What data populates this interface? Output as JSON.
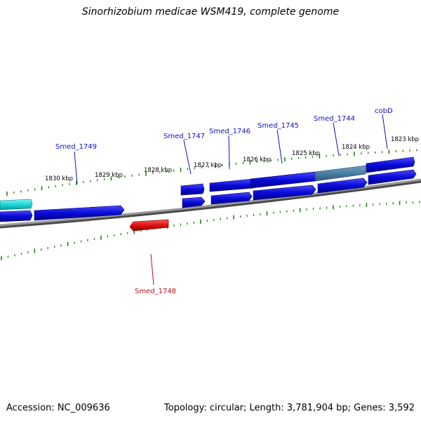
{
  "title": "Sinorhizobium medicae WSM419, complete genome",
  "footer": {
    "accession": "Accession: NC_009636",
    "topology": "Topology: circular; Length: 3,781,904 bp; Genes: 3,592"
  },
  "colors": {
    "backbone": "#7f7f7f",
    "gene_forward": "#0a0ad8",
    "gene_highlight": "#4a7fa6",
    "gene_cyan": "#1fd6d6",
    "gene_reverse": "#e01010",
    "tick": "#2e7d1e",
    "label_blue": "#1010c0",
    "label_red": "#c01010"
  },
  "scale": {
    "labels": [
      "1823 kbp",
      "1824 kbp",
      "1825 kbp",
      "1826 kbp",
      "1827 kbp",
      "1828 kbp",
      "1829 kbp",
      "1830 kbp"
    ]
  },
  "genes": [
    {
      "label": "cobD",
      "strand": "forward"
    },
    {
      "label": "Smed_1744",
      "strand": "forward"
    },
    {
      "label": "Smed_1745",
      "strand": "forward"
    },
    {
      "label": "Smed_1746",
      "strand": "forward"
    },
    {
      "label": "Smed_1747",
      "strand": "forward"
    },
    {
      "label": "Smed_1748",
      "strand": "reverse"
    },
    {
      "label": "Smed_1749",
      "strand": "forward"
    }
  ]
}
